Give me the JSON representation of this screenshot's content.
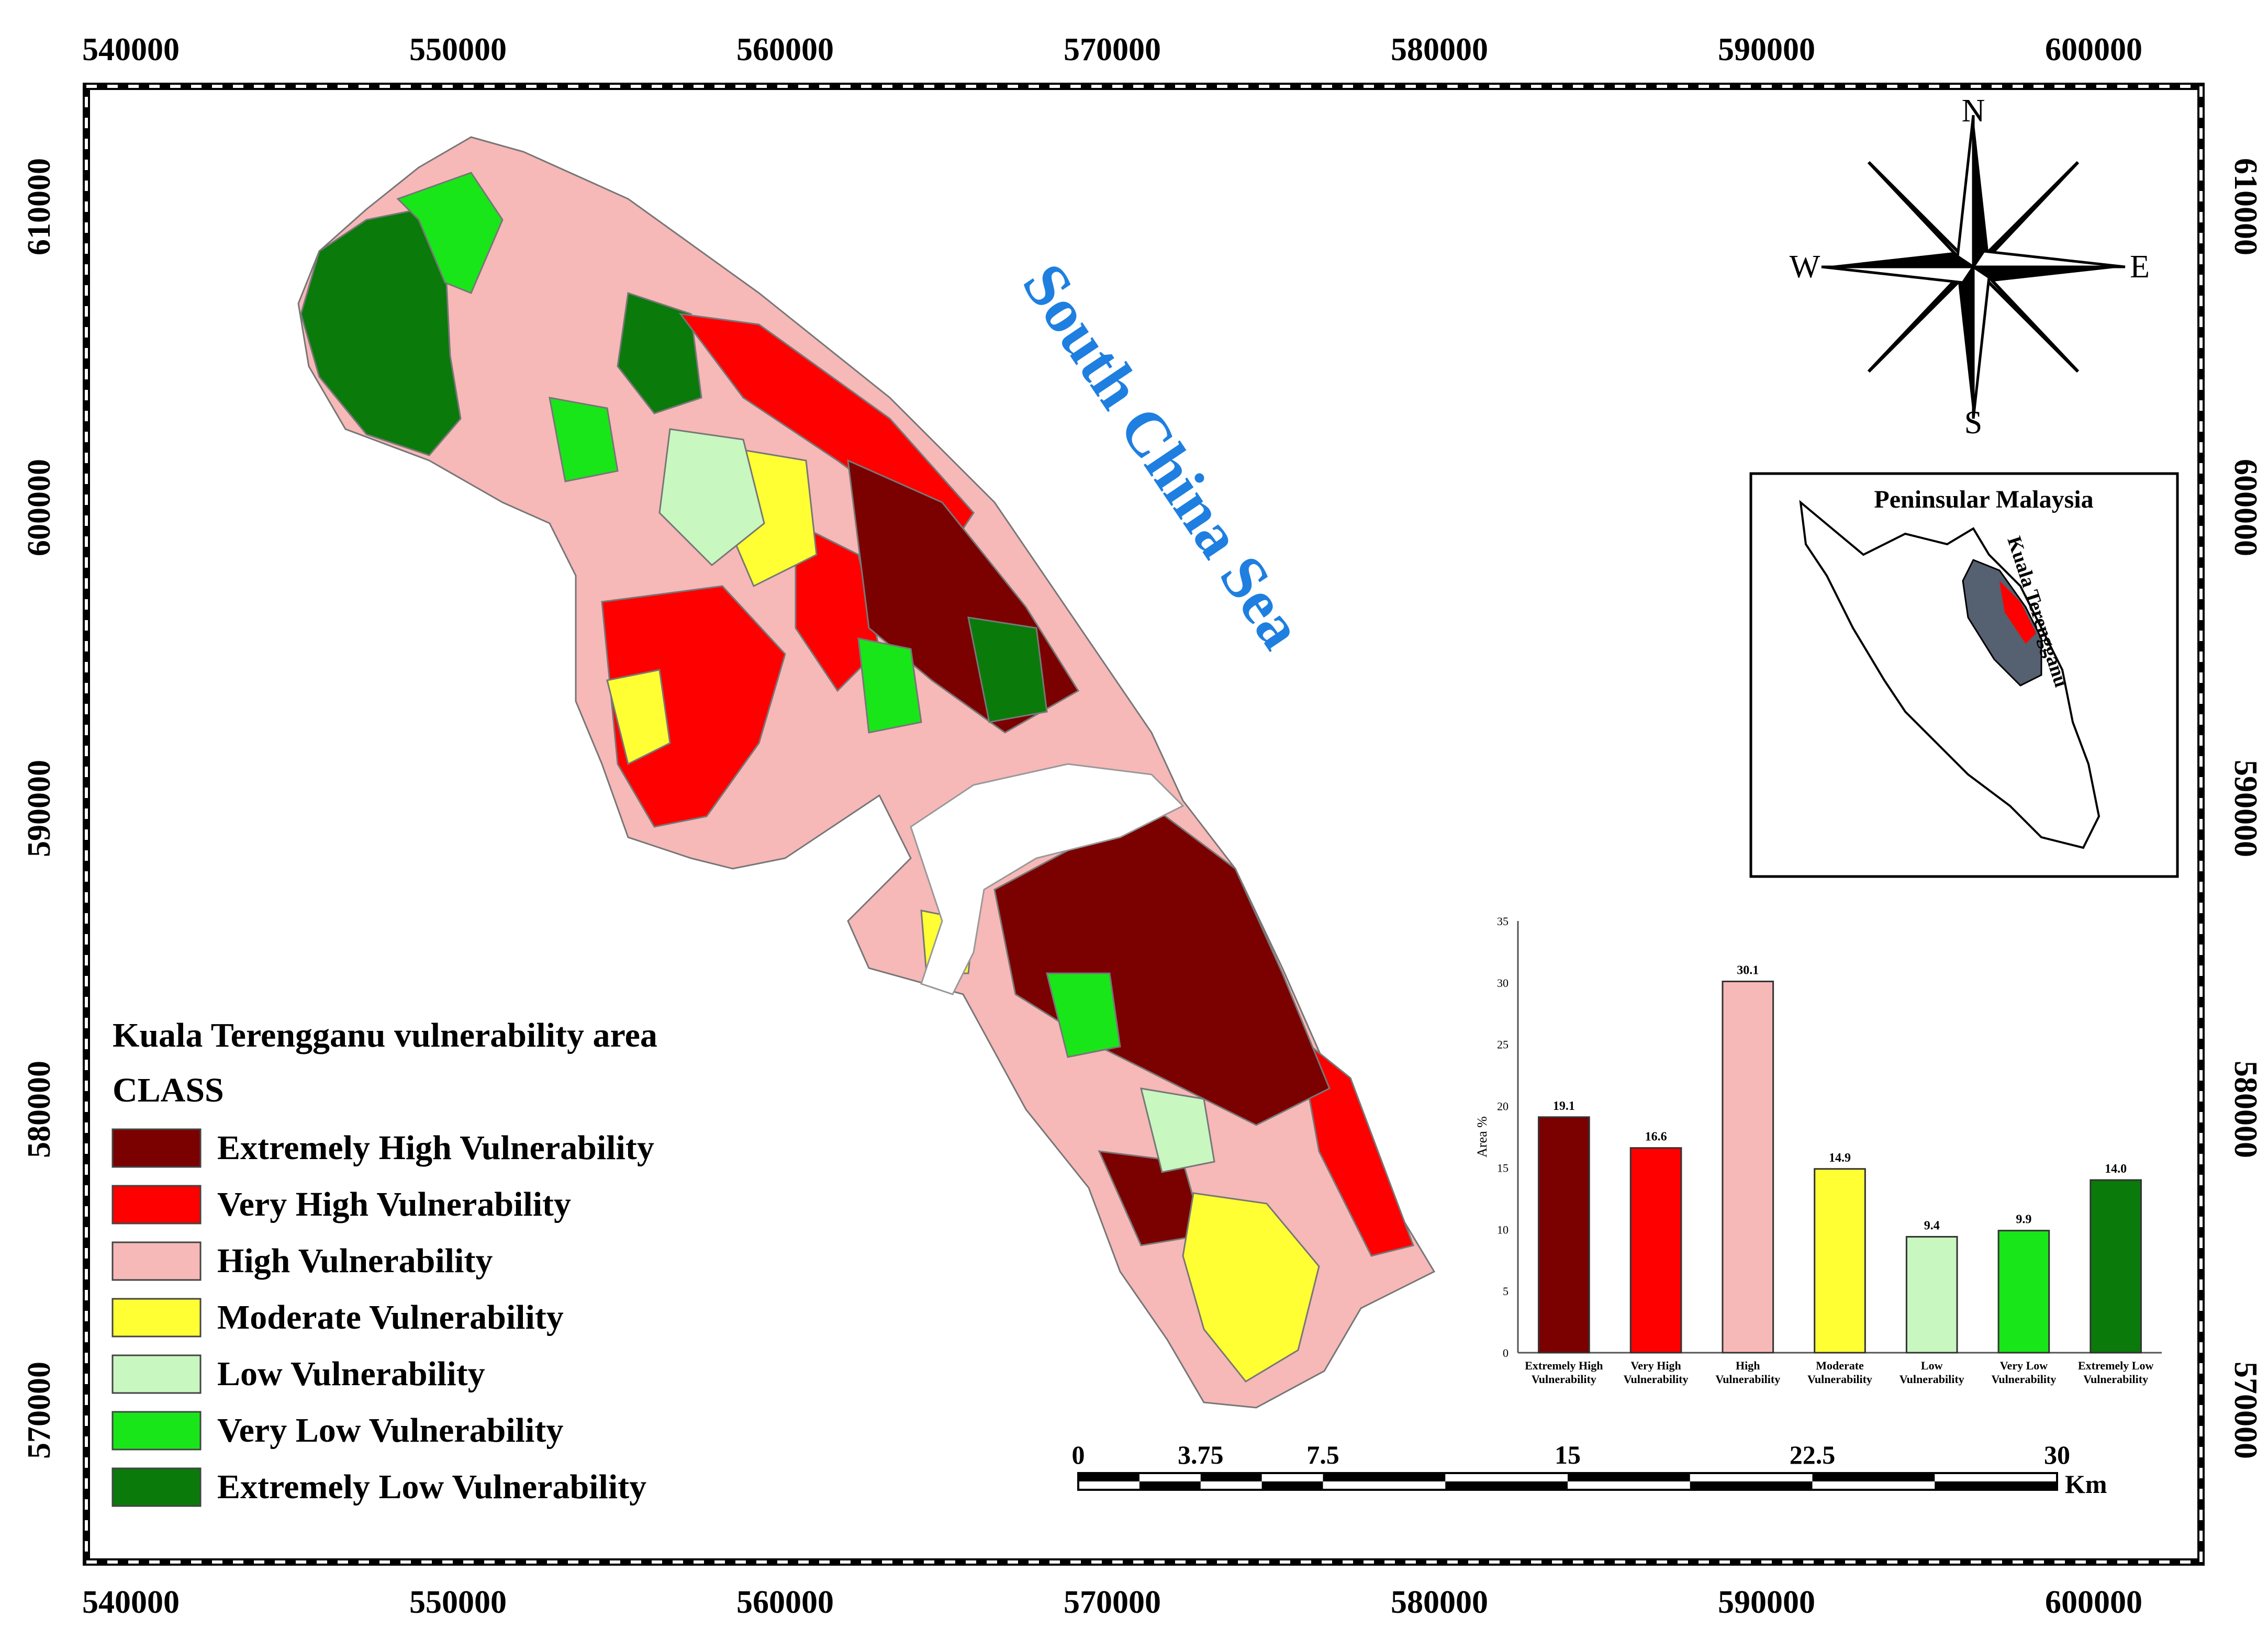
{
  "grid": {
    "x_labels": [
      "540000",
      "550000",
      "560000",
      "570000",
      "580000",
      "590000",
      "600000"
    ],
    "y_labels": [
      "610000",
      "600000",
      "590000",
      "580000",
      "570000"
    ]
  },
  "sea_label": "South China Sea",
  "compass": {
    "n": "N",
    "s": "S",
    "e": "E",
    "w": "W"
  },
  "inset": {
    "title": "Peninsular Malaysia",
    "region_label": "Kuala Terengganu"
  },
  "legend": {
    "title": "Kuala Terengganu vulnerability area",
    "subtitle": "CLASS",
    "items": [
      {
        "label": "Extremely High Vulnerability",
        "color": "#7b0000"
      },
      {
        "label": "Very High Vulnerability",
        "color": "#ff0000"
      },
      {
        "label": "High Vulnerability",
        "color": "#f7b8b8"
      },
      {
        "label": "Moderate Vulnerability",
        "color": "#ffff33"
      },
      {
        "label": "Low Vulnerability",
        "color": "#c8f7c0"
      },
      {
        "label": "Very Low Vulnerability",
        "color": "#19e619"
      },
      {
        "label": "Extremely Low Vulnerability",
        "color": "#0a7a0a"
      }
    ]
  },
  "chart_data": {
    "type": "bar",
    "ylabel": "Area %",
    "ylim": [
      0,
      35
    ],
    "yticks": [
      "0",
      "5",
      "10",
      "15",
      "20",
      "25",
      "30",
      "35"
    ],
    "categories": [
      [
        "Extremely High",
        "Vulnerability"
      ],
      [
        "Very High",
        "Vulnerability"
      ],
      [
        "High",
        "Vulnerability"
      ],
      [
        "Moderate",
        "Vulnerability"
      ],
      [
        "Low",
        "Vulnerability"
      ],
      [
        "Very Low",
        "Vulnerability"
      ],
      [
        "Extremely Low",
        "Vulnerability"
      ]
    ],
    "values": [
      19.1,
      16.6,
      30.1,
      14.9,
      9.4,
      9.9,
      14.0
    ],
    "value_labels": [
      "19.1",
      "16.6",
      "30.1",
      "14.9",
      "9.4",
      "9.9",
      "14.0"
    ],
    "colors": [
      "#7b0000",
      "#ff0000",
      "#f7b8b8",
      "#ffff33",
      "#c8f7c0",
      "#19e619",
      "#0a7a0a"
    ]
  },
  "scale_bar": {
    "labels": [
      "0",
      "3.75",
      "7.5",
      "15",
      "22.5",
      "30"
    ],
    "unit": "Km"
  }
}
